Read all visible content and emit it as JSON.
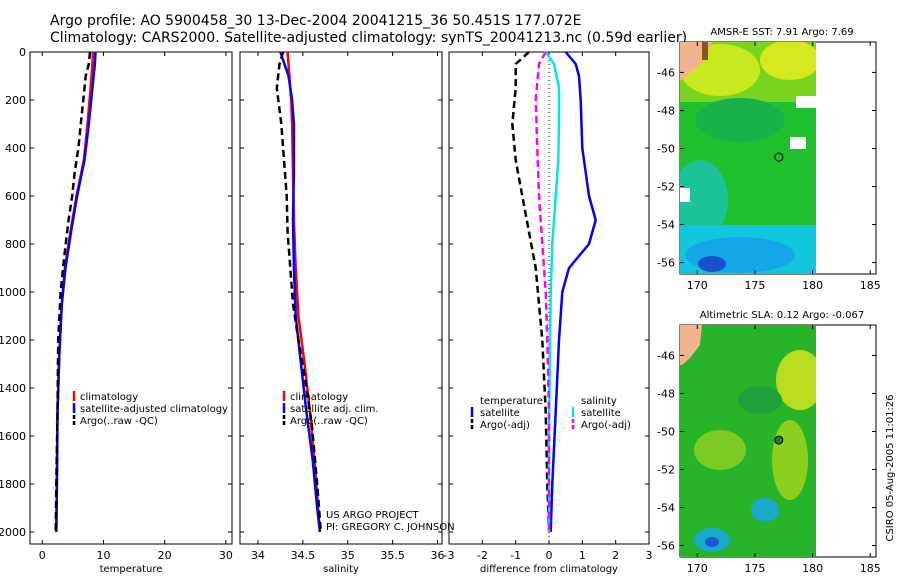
{
  "title": {
    "line1": "Argo profile: AO 5900458_30 13-Dec-2004 20041215_36 50.451S 177.072E",
    "line2": "Climatology: CARS2000. Satellite-adjusted climatology: synTS_20041213.nc (0.59d earlier)"
  },
  "colors": {
    "red": "#ff0000",
    "blue": "#0000ff",
    "black": "#000000",
    "cyan": "#00e5ee",
    "magenta": "#ff00ff"
  },
  "footer": {
    "line1": "US ARGO PROJECT",
    "line2": "PI: GREGORY C. JOHNSON"
  },
  "side_stamp": "CSIRO 05-Aug-2005 11:01:26",
  "chart_data": [
    {
      "id": "temperature",
      "type": "line",
      "xlabel": "temperature",
      "xlim": [
        -2,
        31
      ],
      "xticks": [
        0,
        10,
        20,
        30
      ],
      "ylim": [
        2050,
        0
      ],
      "yticks": [
        0,
        200,
        400,
        600,
        800,
        1000,
        1200,
        1400,
        1600,
        1800,
        2000
      ],
      "legend": [
        "climatology",
        "satellite-adjusted climatology",
        "Argo(..raw -QC)"
      ],
      "legend_position": "lower-right",
      "series": [
        {
          "name": "climatology",
          "color": "red",
          "dash": "solid",
          "x": [
            8.3,
            8.2,
            7.9,
            7.4,
            6.8,
            5.6,
            4.6,
            3.7,
            3.2,
            2.8,
            2.5,
            2.4,
            2.3
          ],
          "y": [
            0,
            50,
            150,
            300,
            450,
            600,
            750,
            900,
            1050,
            1250,
            1500,
            1800,
            2000
          ]
        },
        {
          "name": "satellite-adjusted climatology",
          "color": "blue",
          "dash": "solid",
          "x": [
            8.7,
            8.6,
            8.2,
            7.6,
            6.9,
            5.7,
            4.7,
            3.8,
            3.2,
            2.8,
            2.5,
            2.4,
            2.3
          ],
          "y": [
            0,
            50,
            150,
            300,
            450,
            600,
            750,
            900,
            1050,
            1250,
            1500,
            1800,
            2000
          ]
        },
        {
          "name": "Argo(..raw -QC)",
          "color": "black",
          "dash": "dashed",
          "x": [
            7.8,
            7.6,
            7.1,
            6.7,
            6.3,
            5.9,
            5.3,
            4.9,
            4.3,
            3.6,
            3.0,
            2.6,
            2.5,
            2.3,
            2.2
          ],
          "y": [
            0,
            50,
            100,
            200,
            300,
            400,
            500,
            600,
            700,
            850,
            1000,
            1200,
            1500,
            1800,
            2000
          ]
        }
      ]
    },
    {
      "id": "salinity",
      "type": "line",
      "xlabel": "salinity",
      "xlim": [
        33.8,
        36.05
      ],
      "xticks": [
        34,
        34.5,
        35,
        35.5,
        36
      ],
      "ylim": [
        2050,
        0
      ],
      "yticks": [
        0,
        200,
        400,
        600,
        800,
        1000,
        1200,
        1400,
        1600,
        1800,
        2000
      ],
      "legend": [
        "climatology",
        "satellite adj. clim.",
        "Argo(..raw -QC)"
      ],
      "legend_position": "lower-right",
      "series": [
        {
          "name": "climatology",
          "color": "red",
          "dash": "solid",
          "x": [
            34.33,
            34.35,
            34.37,
            34.38,
            34.39,
            34.4,
            34.42,
            34.45,
            34.52,
            34.58,
            34.63,
            34.67,
            34.69
          ],
          "y": [
            0,
            100,
            200,
            300,
            500,
            700,
            900,
            1100,
            1300,
            1500,
            1700,
            1900,
            2000
          ]
        },
        {
          "name": "satellite adj. clim.",
          "color": "blue",
          "dash": "solid",
          "x": [
            34.25,
            34.34,
            34.38,
            34.4,
            34.4,
            34.39,
            34.4,
            34.42,
            34.48,
            34.54,
            34.61,
            34.66,
            34.69
          ],
          "y": [
            0,
            100,
            200,
            300,
            500,
            700,
            900,
            1100,
            1300,
            1500,
            1700,
            1900,
            2000
          ]
        },
        {
          "name": "Argo(..raw -QC)",
          "color": "black",
          "dash": "dashed",
          "x": [
            34.28,
            34.24,
            34.21,
            34.26,
            34.29,
            34.32,
            34.33,
            34.36,
            34.39,
            34.45,
            34.52,
            34.6,
            34.66,
            34.7
          ],
          "y": [
            0,
            50,
            150,
            300,
            450,
            600,
            750,
            900,
            1050,
            1200,
            1350,
            1550,
            1800,
            2000
          ]
        }
      ]
    },
    {
      "id": "difference",
      "type": "line",
      "xlabel": "difference from climatology",
      "xlim": [
        -3,
        3
      ],
      "xticks": [
        -3,
        -2,
        -1,
        0,
        1,
        2,
        3
      ],
      "ylim": [
        2050,
        0
      ],
      "yticks": [
        0,
        200,
        400,
        600,
        800,
        1000,
        1200,
        1400,
        1600,
        1800,
        2000
      ],
      "legend_left": {
        "title": "temperature",
        "items": [
          "satellite",
          "Argo(-adj)"
        ]
      },
      "legend_right": {
        "title": "salinity",
        "items": [
          "satellite",
          "Argo(-adj)"
        ]
      },
      "series": [
        {
          "name": "temperature satellite",
          "color": "blue",
          "dash": "solid",
          "x": [
            0.5,
            0.8,
            0.9,
            0.95,
            1.0,
            1.2,
            1.4,
            1.2,
            0.6,
            0.4,
            0.3,
            0.2,
            0.1,
            0.05
          ],
          "y": [
            0,
            50,
            100,
            200,
            400,
            600,
            700,
            800,
            900,
            1000,
            1200,
            1500,
            1800,
            2000
          ]
        },
        {
          "name": "temperature Argo(-adj)",
          "color": "black",
          "dash": "dashed",
          "x": [
            -0.6,
            -1.0,
            -1.0,
            -1.1,
            -1.0,
            -0.8,
            -0.6,
            -0.4,
            -0.3,
            -0.2,
            -0.1,
            -0.05,
            0.0
          ],
          "y": [
            0,
            50,
            150,
            300,
            450,
            600,
            750,
            900,
            1050,
            1200,
            1500,
            1800,
            2000
          ]
        },
        {
          "name": "salinity satellite",
          "color": "cyan",
          "dash": "solid",
          "x": [
            -0.1,
            0.15,
            0.3,
            0.3,
            0.28,
            0.2,
            0.1,
            0.05,
            0.02,
            0.0,
            0.0
          ],
          "y": [
            0,
            50,
            150,
            300,
            450,
            600,
            800,
            1000,
            1300,
            1600,
            2000
          ]
        },
        {
          "name": "salinity Argo(-adj)",
          "color": "magenta",
          "dash": "dashed",
          "x": [
            -0.1,
            -0.3,
            -0.4,
            -0.35,
            -0.3,
            -0.2,
            -0.1,
            -0.05,
            0.0,
            0.0
          ],
          "y": [
            0,
            50,
            200,
            400,
            600,
            800,
            1000,
            1200,
            1500,
            2000
          ]
        }
      ]
    },
    {
      "id": "sst-map",
      "type": "heatmap",
      "title": "AMSR-E SST: 7.91 Argo: 7.69",
      "xlim": [
        168.5,
        185.5
      ],
      "xticks": [
        170,
        175,
        180,
        185
      ],
      "ylim": [
        -56.6,
        -44.4
      ],
      "yticks": [
        -46,
        -48,
        -50,
        -52,
        -54,
        -56
      ],
      "float_position": [
        177.072,
        -50.451
      ]
    },
    {
      "id": "sla-map",
      "type": "heatmap",
      "title": "Altimetric SLA: 0.12 Argo: -0.067",
      "xlim": [
        168.5,
        185.5
      ],
      "xticks": [
        170,
        175,
        180,
        185
      ],
      "ylim": [
        -56.6,
        -44.4
      ],
      "yticks": [
        -46,
        -48,
        -50,
        -52,
        -54,
        -56
      ],
      "float_position": [
        177.072,
        -50.451
      ]
    }
  ]
}
